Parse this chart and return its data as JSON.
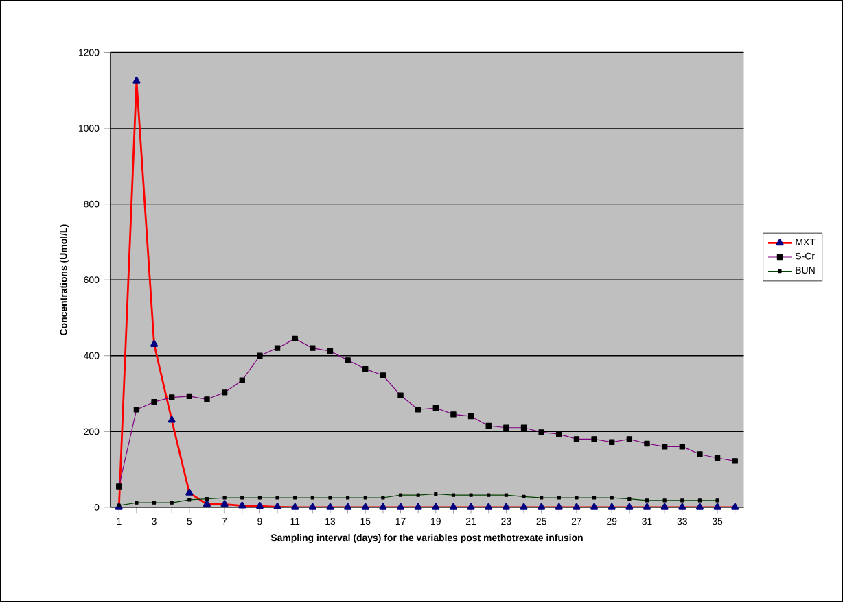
{
  "chart_data": {
    "type": "line",
    "xlabel": "Sampling interval (days) for the variables post methotrexate infusion",
    "ylabel": "Concentrations (Umol/L)",
    "categories": [
      "1",
      null,
      "3",
      null,
      "5",
      null,
      "7",
      null,
      "9",
      null,
      "11",
      null,
      "13",
      null,
      "15",
      null,
      "17",
      null,
      "19",
      null,
      "21",
      null,
      "23",
      null,
      "25",
      null,
      "27",
      null,
      "29",
      null,
      "31",
      null,
      "33",
      null,
      "35",
      null
    ],
    "series": [
      {
        "name": "MXT",
        "color": "#ff0000",
        "marker": "triangle",
        "values": [
          0,
          1125,
          430,
          230,
          38,
          8,
          8,
          4,
          3,
          1,
          0,
          0,
          0,
          0,
          0,
          0,
          0,
          0,
          0,
          0,
          0,
          0,
          0,
          0,
          0,
          0,
          0,
          0,
          0,
          0,
          0,
          0,
          0,
          0,
          0,
          0
        ]
      },
      {
        "name": "S-Cr",
        "color": "#800080",
        "marker": "square",
        "values": [
          55,
          258,
          278,
          290,
          293,
          285,
          303,
          335,
          400,
          420,
          445,
          420,
          412,
          388,
          365,
          348,
          295,
          258,
          262,
          245,
          240,
          215,
          210,
          210,
          198,
          193,
          180,
          180,
          172,
          180,
          168,
          160,
          160,
          140,
          130,
          122
        ]
      },
      {
        "name": "BUN",
        "color": "#004000",
        "marker": "square",
        "values": [
          5,
          12,
          12,
          12,
          20,
          22,
          25,
          25,
          25,
          25,
          25,
          25,
          25,
          25,
          25,
          25,
          32,
          32,
          35,
          32,
          32,
          32,
          32,
          28,
          25,
          25,
          25,
          25,
          25,
          22,
          18,
          18,
          18,
          18,
          18,
          null
        ]
      }
    ],
    "ylim": [
      0,
      1200
    ],
    "yticks": [
      0,
      200,
      400,
      600,
      800,
      1000,
      1200
    ],
    "grid": "y",
    "legend": "right"
  }
}
